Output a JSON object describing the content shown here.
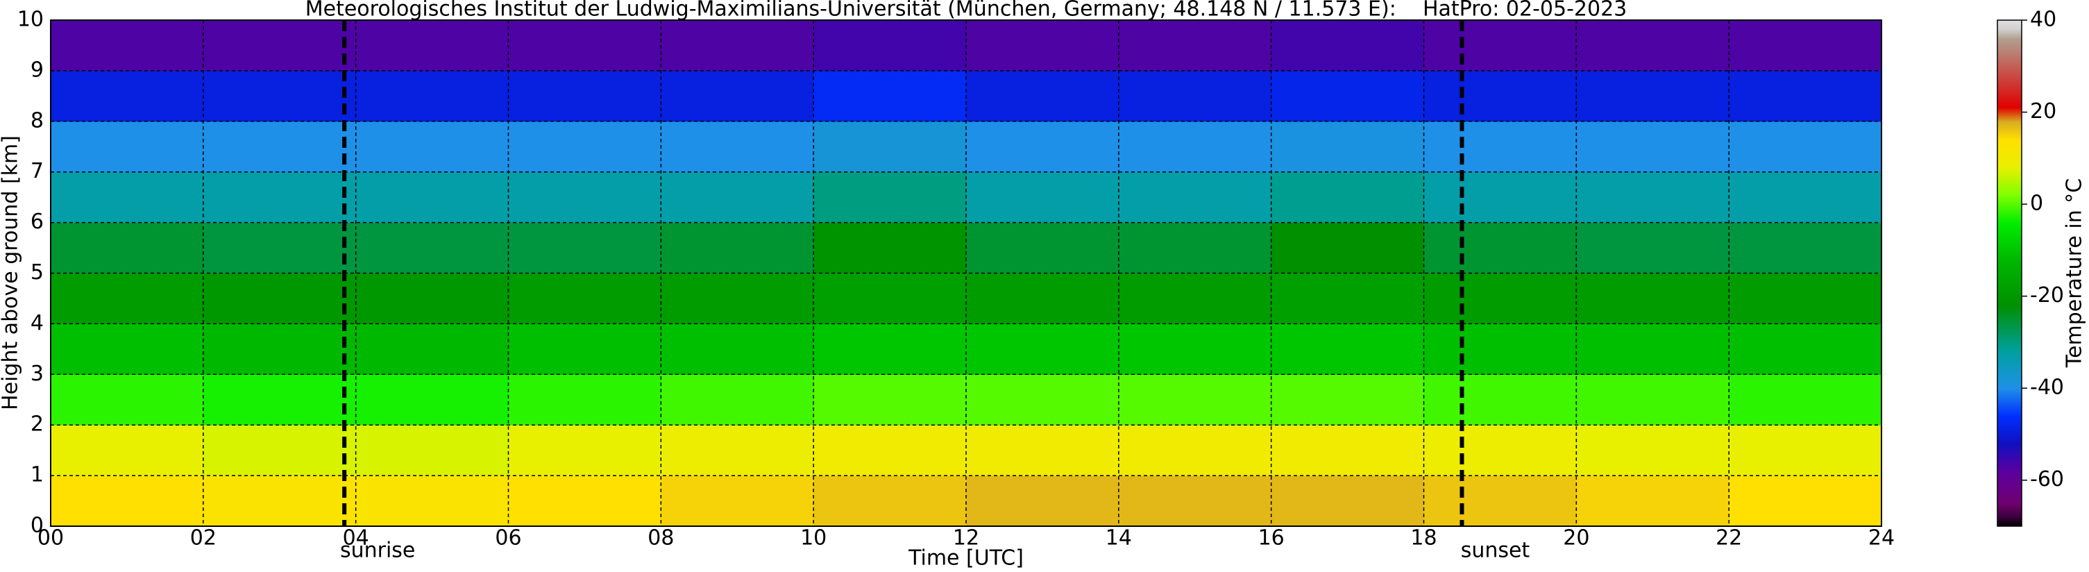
{
  "chart_data": {
    "type": "heatmap",
    "title": "Meteorologisches Institut der Ludwig-Maximilians-Universität (München, Germany; 48.148 N / 11.573 E):    HatPro: 02-05-2023",
    "xlabel": "Time [UTC]",
    "ylabel": "Height above ground [km]",
    "xbins": [
      0,
      2,
      4,
      6,
      8,
      10,
      12,
      14,
      16,
      18,
      20,
      22,
      24
    ],
    "ybins": [
      0,
      1,
      2,
      3,
      4,
      5,
      6,
      7,
      8,
      9,
      10
    ],
    "values": [
      [
        14,
        13,
        13,
        14,
        15,
        16,
        17,
        17,
        17,
        16,
        15,
        14
      ],
      [
        8,
        7,
        7,
        8,
        9,
        10,
        10,
        10,
        10,
        9,
        8,
        8
      ],
      [
        -2,
        -3,
        -3,
        -2,
        -1,
        0,
        0,
        0,
        0,
        -1,
        -1,
        -2
      ],
      [
        -11,
        -12,
        -12,
        -11,
        -11,
        -10,
        -10,
        -10,
        -10,
        -11,
        -11,
        -11
      ],
      [
        -19,
        -20,
        -20,
        -19,
        -19,
        -18,
        -19,
        -19,
        -18,
        -19,
        -19,
        -19
      ],
      [
        -25,
        -26,
        -26,
        -26,
        -25,
        -21,
        -25,
        -25,
        -22,
        -25,
        -26,
        -26
      ],
      [
        -33,
        -33,
        -33,
        -33,
        -33,
        -30,
        -33,
        -33,
        -31,
        -33,
        -33,
        -33
      ],
      [
        -40,
        -40,
        -40,
        -40,
        -40,
        -38,
        -40,
        -40,
        -39,
        -40,
        -40,
        -40
      ],
      [
        -49,
        -49,
        -49,
        -49,
        -49,
        -47,
        -49,
        -49,
        -48,
        -49,
        -49,
        -49
      ],
      [
        -57,
        -57,
        -57,
        -57,
        -57,
        -56,
        -57,
        -57,
        -56,
        -57,
        -57,
        -57
      ]
    ],
    "xlim": [
      0,
      24
    ],
    "ylim": [
      0,
      10
    ],
    "xticks": [
      {
        "value": 0,
        "label": "00"
      },
      {
        "value": 2,
        "label": "02"
      },
      {
        "value": 4,
        "label": "04"
      },
      {
        "value": 6,
        "label": "06"
      },
      {
        "value": 8,
        "label": "08"
      },
      10,
      12,
      14,
      16,
      18,
      20,
      22,
      24
    ],
    "yticks": [
      0,
      1,
      2,
      3,
      4,
      5,
      6,
      7,
      8,
      9,
      10
    ],
    "grid": true,
    "annotations": [
      {
        "text": "sunrise",
        "x": 3.85
      },
      {
        "text": "sunset",
        "x": 18.5
      }
    ],
    "colorbar": {
      "label": "Temperature in °C",
      "lim": [
        -70,
        40
      ],
      "ticks": [
        -60,
        -40,
        -20,
        0,
        20,
        40
      ],
      "stops": [
        {
          "value": -70,
          "color": "#000000"
        },
        {
          "value": -68,
          "color": "#3a003a"
        },
        {
          "value": -65,
          "color": "#700070"
        },
        {
          "value": -58,
          "color": "#5a00a0"
        },
        {
          "value": -52,
          "color": "#1010c0"
        },
        {
          "value": -46,
          "color": "#0030ff"
        },
        {
          "value": -40,
          "color": "#1e90e8"
        },
        {
          "value": -32,
          "color": "#00a0a0"
        },
        {
          "value": -22,
          "color": "#009000"
        },
        {
          "value": -12,
          "color": "#00b800"
        },
        {
          "value": -4,
          "color": "#00ee00"
        },
        {
          "value": 2,
          "color": "#80ff00"
        },
        {
          "value": 8,
          "color": "#e8f000"
        },
        {
          "value": 14,
          "color": "#ffe000"
        },
        {
          "value": 18,
          "color": "#d8aa20"
        },
        {
          "value": 21,
          "color": "#e00000"
        },
        {
          "value": 36,
          "color": "#b0a090"
        },
        {
          "value": 38,
          "color": "#d0d0d0"
        },
        {
          "value": 40,
          "color": "#e0e0e0"
        }
      ]
    }
  }
}
